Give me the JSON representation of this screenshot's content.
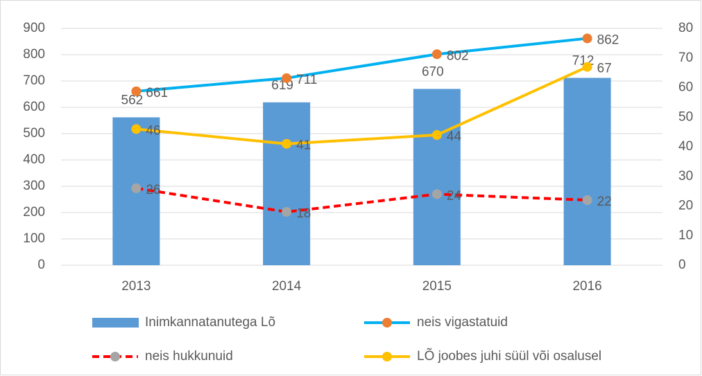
{
  "chart_data": {
    "type": "combo",
    "categories": [
      "2013",
      "2014",
      "2015",
      "2016"
    ],
    "ylim": [
      0,
      900
    ],
    "yticks": [
      0,
      100,
      200,
      300,
      400,
      500,
      600,
      700,
      800,
      900
    ],
    "y2lim": [
      0,
      80
    ],
    "y2ticks": [
      0,
      10,
      20,
      30,
      40,
      50,
      60,
      70,
      80
    ],
    "grid": true,
    "series": [
      {
        "name": "Inimkannatanutega Lõ",
        "type": "bar",
        "color": "#5b9bd5",
        "values": [
          562,
          619,
          670,
          712
        ]
      },
      {
        "name": "neis vigastatuid",
        "type": "line",
        "color": "#00b0f0",
        "marker_color": "#ed7d31",
        "values": [
          661,
          711,
          802,
          862
        ]
      },
      {
        "name": "neis hukkunuid",
        "type": "line",
        "axis": "y2",
        "dashed": true,
        "color": "#ff0000",
        "marker_color": "#a5a5a5",
        "values": [
          26,
          18,
          24,
          22
        ]
      },
      {
        "name": "LÕ joobes juhi süül või osalusel",
        "type": "line",
        "axis": "y2",
        "color": "#ffc000",
        "marker_color": "#ffc000",
        "values": [
          46,
          41,
          44,
          67
        ]
      }
    ]
  }
}
